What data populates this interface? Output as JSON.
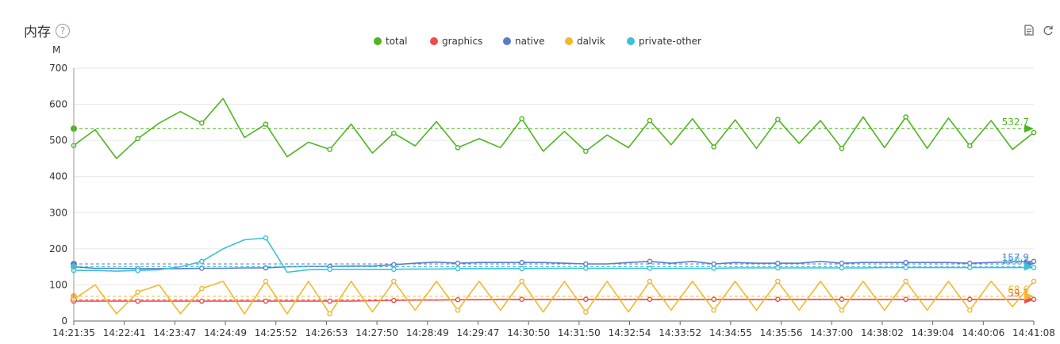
{
  "header": {
    "title": "内存",
    "help_icon": "question-circle-icon"
  },
  "toolbar": {
    "icons": [
      "document-icon",
      "refresh-icon"
    ]
  },
  "chart_data": {
    "type": "line",
    "ylabel": "M",
    "ylim": [
      0,
      700
    ],
    "yticks": [
      0,
      100,
      200,
      300,
      400,
      500,
      600,
      700
    ],
    "x_labels": [
      "14:21:35",
      "14:22:41",
      "14:23:47",
      "14:24:49",
      "14:25:52",
      "14:26:53",
      "14:27:50",
      "14:28:49",
      "14:29:47",
      "14:30:50",
      "14:31:50",
      "14:32:54",
      "14:33:52",
      "14:34:55",
      "14:35:56",
      "14:37:00",
      "14:38:02",
      "14:39:04",
      "14:40:06",
      "14:41:08"
    ],
    "grid": "horizontal",
    "legend_position": "top-center",
    "series": [
      {
        "name": "total",
        "color": "#4CB51E",
        "average": 532.7,
        "average_label": "532.7",
        "values": [
          486,
          530,
          450,
          505,
          548,
          580,
          548,
          616,
          508,
          545,
          455,
          495,
          475,
          545,
          465,
          520,
          485,
          552,
          480,
          505,
          480,
          560,
          470,
          525,
          470,
          515,
          480,
          555,
          488,
          560,
          482,
          557,
          478,
          558,
          492,
          555,
          478,
          565,
          480,
          565,
          478,
          562,
          485,
          555,
          475,
          522
        ]
      },
      {
        "name": "graphics",
        "color": "#EE4B4B",
        "average": 59.1,
        "average_label": "59.1",
        "values": [
          55,
          55,
          55,
          55,
          55,
          55,
          55,
          55,
          55,
          55,
          55,
          55,
          55,
          55,
          56,
          57,
          58,
          58,
          59,
          59,
          60,
          60,
          60,
          60,
          60,
          60,
          60,
          60,
          60,
          60,
          60,
          60,
          60,
          60,
          60,
          60,
          60,
          60,
          60,
          60,
          60,
          60,
          60,
          60,
          60,
          60
        ]
      },
      {
        "name": "native",
        "color": "#5B7BCB",
        "average": 157.9,
        "average_label": "157.9",
        "values": [
          150,
          146,
          146,
          145,
          145,
          145,
          146,
          146,
          147,
          147,
          150,
          151,
          151,
          152,
          152,
          156,
          160,
          163,
          160,
          162,
          162,
          162,
          162,
          160,
          158,
          158,
          162,
          165,
          160,
          165,
          158,
          162,
          160,
          160,
          160,
          165,
          160,
          162,
          162,
          162,
          162,
          162,
          160,
          162,
          164,
          165
        ]
      },
      {
        "name": "dalvik",
        "color": "#F5B730",
        "average": 68.6,
        "average_label": "68.6",
        "values": [
          60,
          100,
          20,
          80,
          100,
          20,
          90,
          110,
          20,
          110,
          20,
          110,
          20,
          110,
          25,
          110,
          30,
          110,
          30,
          110,
          30,
          110,
          25,
          110,
          25,
          110,
          25,
          110,
          30,
          110,
          30,
          110,
          30,
          110,
          30,
          110,
          30,
          110,
          30,
          110,
          30,
          110,
          30,
          110,
          40,
          110
        ]
      },
      {
        "name": "private-other",
        "color": "#3CC2D6",
        "average": 150.3,
        "average_label": "150.3",
        "values": [
          140,
          140,
          138,
          140,
          142,
          150,
          165,
          200,
          225,
          230,
          135,
          142,
          143,
          143,
          143,
          143,
          144,
          144,
          145,
          145,
          145,
          145,
          146,
          146,
          146,
          146,
          146,
          146,
          146,
          146,
          146,
          147,
          147,
          147,
          147,
          147,
          147,
          147,
          148,
          148,
          148,
          148,
          148,
          148,
          148,
          148
        ]
      }
    ]
  }
}
